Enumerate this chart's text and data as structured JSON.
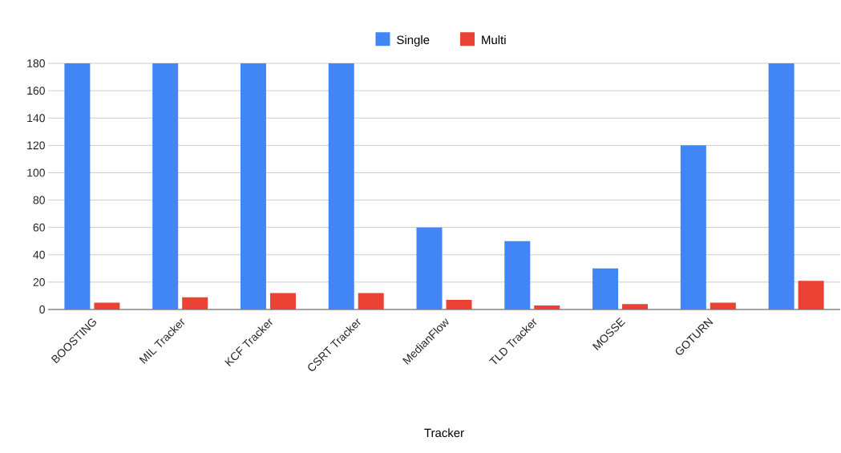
{
  "chart_data": {
    "type": "bar",
    "xlabel": "Tracker",
    "categories": [
      "BOOSTING",
      "MIL Tracker",
      "KCF Tracker",
      "CSRT Tracker",
      "MedianFlow",
      "TLD Tracker",
      "MOSSE",
      "GOTURN",
      null
    ],
    "series": [
      {
        "name": "Single",
        "color": "#4285f4",
        "values": [
          180,
          180,
          180,
          180,
          60,
          50,
          30,
          120,
          180
        ]
      },
      {
        "name": "Multi",
        "color": "#ea4335",
        "values": [
          5,
          9,
          12,
          12,
          7,
          3,
          4,
          5,
          21
        ]
      }
    ],
    "ylim": [
      0,
      180
    ],
    "yticks": [
      0,
      20,
      40,
      60,
      80,
      100,
      120,
      140,
      160,
      180
    ],
    "grid": "y",
    "legend": "top"
  }
}
